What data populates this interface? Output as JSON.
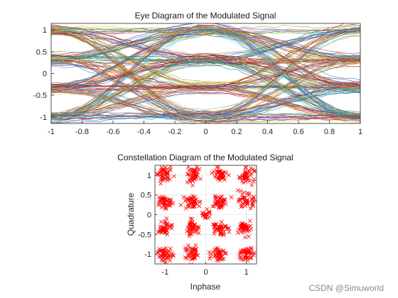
{
  "chart_data": [
    {
      "type": "line",
      "title": "Eye Diagram of the Modulated Signal",
      "xlabel": "",
      "ylabel": "",
      "xlim": [
        -1,
        1
      ],
      "ylim": [
        -1.15,
        1.15
      ],
      "xticks": [
        -1,
        -0.8,
        -0.6,
        -0.4,
        -0.2,
        0,
        0.2,
        0.4,
        0.6,
        0.8,
        1
      ],
      "xtick_labels": [
        "-1",
        "-0.8",
        "-0.6",
        "-0.4",
        "-0.2",
        "0",
        "0.2",
        "0.4",
        "0.6",
        "0.8",
        "1"
      ],
      "yticks": [
        -1,
        -0.5,
        0,
        0.5,
        1
      ],
      "ytick_labels": [
        "-1",
        "-0.5",
        "0",
        "0.5",
        "1"
      ],
      "levels": [
        -1,
        -0.33,
        0.33,
        1
      ],
      "grid": false,
      "series_colors": [
        "#0072BD",
        "#D95319",
        "#EDB120",
        "#7E2F8E",
        "#77AC30",
        "#4DBEEE",
        "#A2142F"
      ]
    },
    {
      "type": "scatter",
      "title": "Constellation Diagram of the Modulated Signal",
      "xlabel": "Inphase",
      "ylabel": "Quadrature",
      "xlim": [
        -1.25,
        1.25
      ],
      "ylim": [
        -1.25,
        1.25
      ],
      "xticks": [
        -1,
        0,
        1
      ],
      "xtick_labels": [
        "-1",
        "0",
        "1"
      ],
      "yticks": [
        -1,
        -0.5,
        0,
        0.5,
        1
      ],
      "ytick_labels": [
        "-1",
        "-0.5",
        "0",
        "0.5",
        "1"
      ],
      "constellation_points": [
        -1,
        -0.33,
        0.33,
        1
      ],
      "marker": "x",
      "marker_color": "#FF0000",
      "grid": true
    }
  ],
  "watermark": "CSDN @Simuworld"
}
